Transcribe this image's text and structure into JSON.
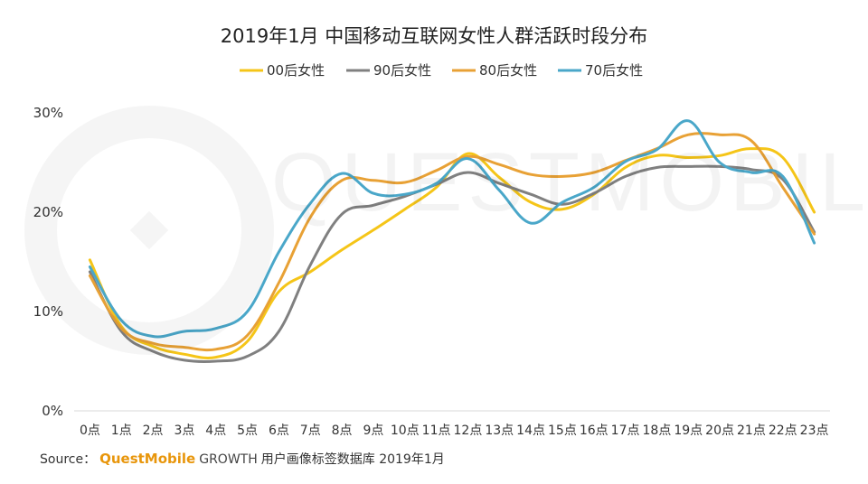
{
  "chart_data": {
    "type": "line",
    "title": "2019年1月 中国移动互联网女性人群活跃时段分布",
    "xlabel": "",
    "ylabel": "",
    "categories": [
      "0点",
      "1点",
      "2点",
      "3点",
      "4点",
      "5点",
      "6点",
      "7点",
      "8点",
      "9点",
      "10点",
      "11点",
      "12点",
      "13点",
      "14点",
      "15点",
      "16点",
      "17点",
      "18点",
      "19点",
      "20点",
      "21点",
      "22点",
      "23点"
    ],
    "ylim": [
      0,
      30
    ],
    "yticks": [
      0,
      10,
      20,
      30
    ],
    "ytick_labels": [
      "0%",
      "10%",
      "20%",
      "30%"
    ],
    "grid": false,
    "legend_position": "top-center",
    "series": [
      {
        "name": "00后女性",
        "color": "#f5c518",
        "values": [
          15.2,
          8.5,
          6.5,
          5.7,
          5.4,
          7.0,
          12.0,
          14.0,
          16.2,
          18.2,
          20.3,
          22.5,
          25.9,
          23.5,
          21.0,
          20.3,
          21.8,
          24.5,
          25.7,
          25.5,
          25.7,
          26.4,
          25.5,
          20.0
        ]
      },
      {
        "name": "90后女性",
        "color": "#808080",
        "values": [
          14.0,
          8.0,
          6.0,
          5.1,
          5.0,
          5.5,
          8.0,
          14.7,
          19.8,
          20.7,
          21.6,
          22.8,
          24.0,
          22.9,
          21.8,
          20.8,
          21.9,
          23.6,
          24.5,
          24.6,
          24.6,
          24.3,
          23.3,
          18.0
        ]
      },
      {
        "name": "80后女性",
        "color": "#e8a135",
        "values": [
          13.6,
          8.3,
          6.8,
          6.4,
          6.2,
          7.6,
          12.9,
          19.5,
          23.2,
          23.2,
          23.0,
          24.2,
          25.6,
          24.8,
          23.8,
          23.6,
          24.0,
          25.2,
          26.4,
          27.8,
          27.8,
          27.2,
          22.5,
          17.8
        ]
      },
      {
        "name": "70后女性",
        "color": "#4aa7c9",
        "values": [
          14.5,
          9.1,
          7.5,
          8.0,
          8.3,
          10.0,
          16.0,
          20.9,
          23.9,
          21.9,
          21.8,
          22.9,
          25.4,
          22.2,
          18.9,
          21.0,
          22.5,
          25.1,
          26.3,
          29.2,
          25.0,
          24.0,
          23.6,
          16.9
        ]
      }
    ]
  },
  "watermark_text": "QUESTMOBILE",
  "source": {
    "prefix": "Source：",
    "brand": "QuestMobile",
    "growth": "GROWTH",
    "rest": "用户画像标签数据库 2019年1月"
  }
}
